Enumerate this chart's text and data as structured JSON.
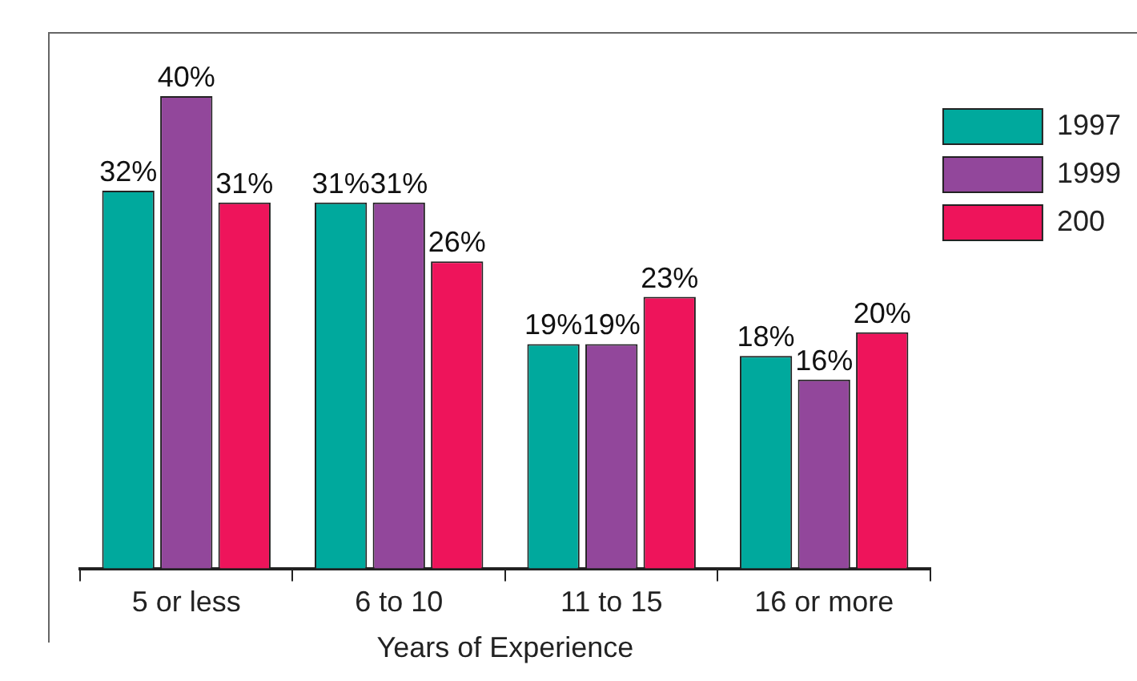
{
  "chart_data": {
    "type": "bar",
    "xlabel": "Years of Experience",
    "categories": [
      "5 or less",
      "6 to 10",
      "11 to 15",
      "16 or more"
    ],
    "series": [
      {
        "name": "1997",
        "color": "#00a99d",
        "values": [
          32,
          31,
          19,
          18
        ],
        "value_labels": [
          "32%",
          "31%",
          "19%",
          "18%"
        ]
      },
      {
        "name": "1999",
        "color": "#92479b",
        "values": [
          40,
          31,
          19,
          16
        ],
        "value_labels": [
          "40%",
          "31%",
          "19%",
          "16%"
        ]
      },
      {
        "name": "200",
        "color": "#ee145b",
        "values": [
          31,
          26,
          23,
          20
        ],
        "value_labels": [
          "31%",
          "26%",
          "23%",
          "20%"
        ]
      }
    ],
    "legend": "top right",
    "grid": false,
    "tick_labels": "x"
  }
}
